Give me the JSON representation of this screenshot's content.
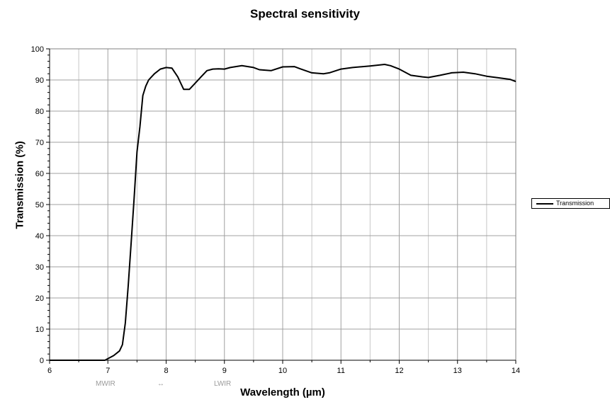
{
  "chart_data": {
    "type": "line",
    "title": "Spectral sensitivity",
    "xlabel": "Wavelength (µm)",
    "ylabel": "Transmission (%)",
    "xlim": [
      6,
      14
    ],
    "ylim": [
      0,
      100
    ],
    "x_ticks": [
      "6",
      "7",
      "8",
      "9",
      "10",
      "11",
      "12",
      "13",
      "14"
    ],
    "y_ticks": [
      "0",
      "10",
      "20",
      "30",
      "40",
      "50",
      "60",
      "70",
      "80",
      "90",
      "100"
    ],
    "grid": true,
    "legend_position": "right",
    "band_labels": {
      "mwir": "MWIR",
      "arrow": "↔",
      "lwir": "LWIR"
    },
    "series": [
      {
        "name": "Transmission",
        "color": "#000000",
        "x": [
          6.0,
          6.5,
          6.95,
          7.0,
          7.1,
          7.2,
          7.25,
          7.3,
          7.35,
          7.4,
          7.45,
          7.5,
          7.55,
          7.6,
          7.65,
          7.7,
          7.75,
          7.8,
          7.9,
          8.0,
          8.1,
          8.2,
          8.3,
          8.4,
          8.5,
          8.6,
          8.7,
          8.8,
          8.9,
          9.0,
          9.1,
          9.3,
          9.5,
          9.6,
          9.8,
          10.0,
          10.2,
          10.3,
          10.5,
          10.7,
          10.8,
          11.0,
          11.2,
          11.5,
          11.75,
          11.85,
          12.0,
          12.2,
          12.4,
          12.5,
          12.7,
          12.9,
          13.1,
          13.3,
          13.5,
          13.7,
          13.9,
          14.0
        ],
        "y": [
          0,
          0,
          0,
          0.5,
          1.5,
          3,
          5,
          12,
          24,
          38,
          52,
          67,
          75,
          85,
          88,
          90,
          91,
          92,
          93.5,
          94,
          93.8,
          91,
          87,
          87,
          89,
          91,
          93,
          93.5,
          93.6,
          93.5,
          94,
          94.6,
          94,
          93.3,
          93,
          94.2,
          94.3,
          93.6,
          92.3,
          92,
          92.3,
          93.5,
          94,
          94.5,
          95,
          94.6,
          93.5,
          91.5,
          91,
          90.8,
          91.5,
          92.3,
          92.5,
          92,
          91.2,
          90.7,
          90.2,
          89.5
        ]
      }
    ]
  }
}
